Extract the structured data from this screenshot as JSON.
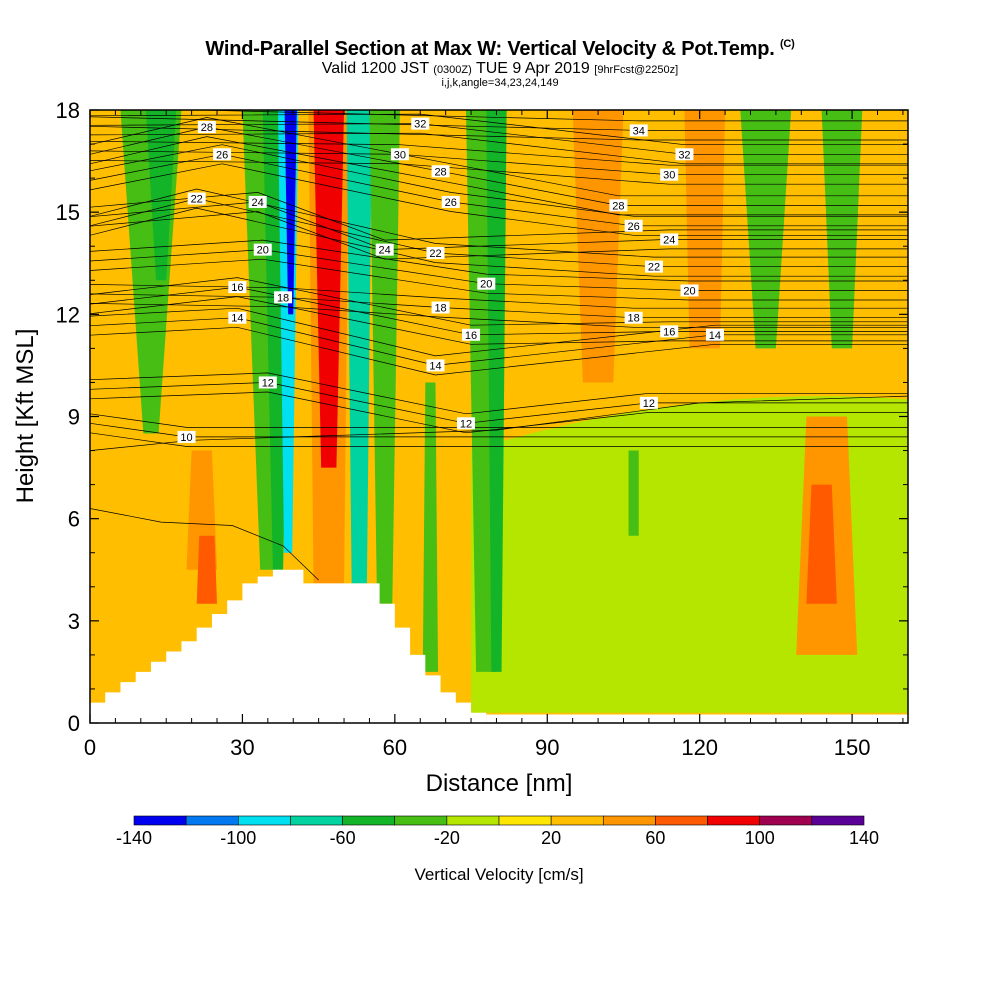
{
  "title": {
    "main": "Wind-Parallel Section at Max W: Vertical Velocity & Pot.Temp.",
    "copyright": "(C)",
    "valid_prefix": "Valid 1200 JST",
    "utc": "(0300Z)",
    "valid_date": "TUE 9 Apr 2019",
    "forecast": "[9hrFcst@2250z]",
    "indices": "i,j,k,angle=34,23,24,149"
  },
  "chart_data": {
    "type": "heatmap",
    "xlabel": "Distance [nm]",
    "ylabel": "Height [Kft MSL]",
    "xlim": [
      0,
      161
    ],
    "ylim": [
      0,
      18
    ],
    "x_ticks": [
      "0",
      "30",
      "60",
      "90",
      "120",
      "150"
    ],
    "x_tick_values": [
      0,
      30,
      60,
      90,
      120,
      150
    ],
    "y_ticks": [
      "0",
      "3",
      "6",
      "9",
      "12",
      "15",
      "18"
    ],
    "y_tick_values": [
      0,
      3,
      6,
      9,
      12,
      15,
      18
    ],
    "terrain_profile": {
      "x": [
        0,
        3,
        6,
        9,
        12,
        15,
        18,
        21,
        24,
        27,
        30,
        33,
        36,
        39,
        42,
        45,
        48,
        51,
        54,
        57,
        60,
        63,
        66,
        69,
        72,
        75
      ],
      "height": [
        0.6,
        0.9,
        1.2,
        1.5,
        1.8,
        2.1,
        2.4,
        2.8,
        3.2,
        3.6,
        4.1,
        4.3,
        4.5,
        4.5,
        4.1,
        4.1,
        4.1,
        4.1,
        4.1,
        3.5,
        2.8,
        2.0,
        1.4,
        0.9,
        0.6,
        0.3
      ]
    },
    "colorbar": {
      "title": "Vertical Velocity [cm/s]",
      "bounds": [
        -140,
        -120,
        -100,
        -80,
        -60,
        -40,
        -20,
        0,
        20,
        40,
        60,
        80,
        100,
        120,
        140
      ],
      "labels": [
        "-140",
        "-100",
        "-60",
        "-20",
        "20",
        "60",
        "100",
        "140"
      ],
      "label_values": [
        -140,
        -100,
        -60,
        -20,
        20,
        60,
        100,
        140
      ],
      "colors": [
        "#0000f0",
        "#0078f0",
        "#00e0f0",
        "#00d2a0",
        "#14b428",
        "#46be14",
        "#b4e600",
        "#ffe600",
        "#ffbe00",
        "#ff9600",
        "#ff5a00",
        "#f00000",
        "#a00050",
        "#5a0096"
      ]
    },
    "velocity_field": {
      "note_units": "cm/s",
      "background": [
        {
          "x": [
            0,
            161
          ],
          "y": [
            0,
            18
          ],
          "value": 25
        }
      ],
      "bands": [
        {
          "x_center": 12,
          "y_bottom": 8.5,
          "y_top": 18,
          "half_width_bottom": 1.5,
          "half_width_top": 6,
          "value": -30
        },
        {
          "x_center": 14,
          "y_bottom": 13,
          "y_top": 18,
          "half_width_bottom": 1,
          "half_width_top": 3,
          "value": -45
        },
        {
          "x_center": 22,
          "y_bottom": 4.5,
          "y_top": 8,
          "half_width_bottom": 3,
          "half_width_top": 2,
          "value": 40
        },
        {
          "x_center": 23,
          "y_bottom": 3.5,
          "y_top": 5.5,
          "half_width_bottom": 2,
          "half_width_top": 1.5,
          "value": 60
        },
        {
          "x_center": 35,
          "y_bottom": 4.5,
          "y_top": 18,
          "half_width_bottom": 1.5,
          "half_width_top": 5,
          "value": -30
        },
        {
          "x_center": 37,
          "y_bottom": 4.5,
          "y_top": 18,
          "half_width_bottom": 1,
          "half_width_top": 3,
          "value": -60
        },
        {
          "x_center": 39,
          "y_bottom": 5,
          "y_top": 18,
          "half_width_bottom": 0.8,
          "half_width_top": 2,
          "value": -90
        },
        {
          "x_center": 39.5,
          "y_bottom": 12,
          "y_top": 18,
          "half_width_bottom": 0.5,
          "half_width_top": 1.2,
          "value": -130
        },
        {
          "x_center": 47,
          "y_bottom": 4.1,
          "y_top": 18,
          "half_width_bottom": 3,
          "half_width_top": 4,
          "value": 50
        },
        {
          "x_center": 47,
          "y_bottom": 7.5,
          "y_top": 18,
          "half_width_bottom": 1.5,
          "half_width_top": 3,
          "value": 90
        },
        {
          "x_center": 53,
          "y_bottom": 4.1,
          "y_top": 18,
          "half_width_bottom": 1.5,
          "half_width_top": 2.5,
          "value": -70
        },
        {
          "x_center": 58,
          "y_bottom": 3.5,
          "y_top": 18,
          "half_width_bottom": 1.5,
          "half_width_top": 3,
          "value": -30
        },
        {
          "x_center": 67,
          "y_bottom": 1.5,
          "y_top": 10,
          "half_width_bottom": 1.5,
          "half_width_top": 1,
          "value": -30
        },
        {
          "x_center": 68,
          "y_bottom": 10,
          "y_top": 18,
          "half_width_bottom": 2,
          "half_width_top": 3,
          "value": 30
        },
        {
          "x_center": 78,
          "y_bottom": 1.5,
          "y_top": 18,
          "half_width_bottom": 2,
          "half_width_top": 4,
          "value": -30
        },
        {
          "x_center": 80,
          "y_bottom": 1.5,
          "y_top": 18,
          "half_width_bottom": 1,
          "half_width_top": 2,
          "value": -50
        },
        {
          "x_center": 100,
          "y_bottom": 10,
          "y_top": 18,
          "half_width_bottom": 3,
          "half_width_top": 5,
          "value": 40
        },
        {
          "x_center": 107,
          "y_bottom": 5.5,
          "y_top": 8,
          "half_width_bottom": 1,
          "half_width_top": 1,
          "value": -40
        },
        {
          "x_center": 121,
          "y_bottom": 11,
          "y_top": 18,
          "half_width_bottom": 3,
          "half_width_top": 4,
          "value": 40
        },
        {
          "x_center": 133,
          "y_bottom": 11,
          "y_top": 18,
          "half_width_bottom": 2,
          "half_width_top": 5,
          "value": -40
        },
        {
          "x_center": 148,
          "y_bottom": 11,
          "y_top": 18,
          "half_width_bottom": 2,
          "half_width_top": 4,
          "value": -40
        },
        {
          "x_center": 145,
          "y_bottom": 2,
          "y_top": 9,
          "half_width_bottom": 6,
          "half_width_top": 4,
          "value": 40
        },
        {
          "x_center": 144,
          "y_bottom": 3.5,
          "y_top": 7,
          "half_width_bottom": 3,
          "half_width_top": 2,
          "value": 60
        }
      ],
      "low_level_field": [
        {
          "x": [
            75,
            161
          ],
          "y": [
            0.3,
            9.5
          ],
          "value": -10
        }
      ]
    },
    "theta_contours": {
      "units": "K (label value, offset as printed)",
      "levels": [
        10,
        12,
        14,
        16,
        18,
        20,
        22,
        24,
        26,
        28,
        30,
        32,
        34
      ],
      "labels": [
        {
          "text": "10",
          "x": 19,
          "y": 8.4
        },
        {
          "text": "12",
          "x": 35,
          "y": 10.0
        },
        {
          "text": "12",
          "x": 74,
          "y": 8.8
        },
        {
          "text": "12",
          "x": 110,
          "y": 9.4
        },
        {
          "text": "14",
          "x": 29,
          "y": 11.9
        },
        {
          "text": "14",
          "x": 68,
          "y": 10.5
        },
        {
          "text": "14",
          "x": 123,
          "y": 11.4
        },
        {
          "text": "16",
          "x": 29,
          "y": 12.8
        },
        {
          "text": "16",
          "x": 75,
          "y": 11.4
        },
        {
          "text": "16",
          "x": 114,
          "y": 11.5
        },
        {
          "text": "18",
          "x": 38,
          "y": 12.5
        },
        {
          "text": "18",
          "x": 69,
          "y": 12.2
        },
        {
          "text": "18",
          "x": 107,
          "y": 11.9
        },
        {
          "text": "20",
          "x": 34,
          "y": 13.9
        },
        {
          "text": "20",
          "x": 78,
          "y": 12.9
        },
        {
          "text": "20",
          "x": 118,
          "y": 12.7
        },
        {
          "text": "22",
          "x": 21,
          "y": 15.4
        },
        {
          "text": "22",
          "x": 68,
          "y": 13.8
        },
        {
          "text": "22",
          "x": 111,
          "y": 13.4
        },
        {
          "text": "24",
          "x": 33,
          "y": 15.3
        },
        {
          "text": "24",
          "x": 58,
          "y": 13.9
        },
        {
          "text": "24",
          "x": 114,
          "y": 14.2
        },
        {
          "text": "26",
          "x": 26,
          "y": 16.7
        },
        {
          "text": "26",
          "x": 71,
          "y": 15.3
        },
        {
          "text": "26",
          "x": 107,
          "y": 14.6
        },
        {
          "text": "28",
          "x": 23,
          "y": 17.5
        },
        {
          "text": "28",
          "x": 69,
          "y": 16.2
        },
        {
          "text": "28",
          "x": 104,
          "y": 15.2
        },
        {
          "text": "30",
          "x": 61,
          "y": 16.7
        },
        {
          "text": "30",
          "x": 114,
          "y": 16.1
        },
        {
          "text": "32",
          "x": 65,
          "y": 17.6
        },
        {
          "text": "32",
          "x": 117,
          "y": 16.7
        },
        {
          "text": "34",
          "x": 108,
          "y": 17.4
        }
      ]
    }
  }
}
